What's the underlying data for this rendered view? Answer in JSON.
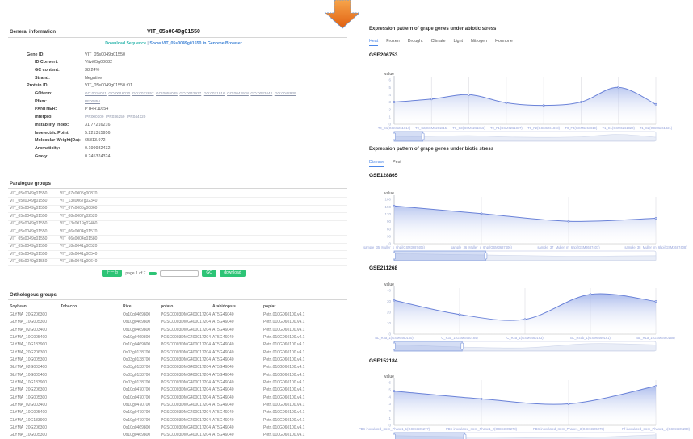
{
  "left": {
    "general": {
      "heading": "General information",
      "title": "VIT_05s0049g01550",
      "download_link": "Download Sequence",
      "separator": "|",
      "browser_link": "Show VIT_05s0049g01550 in Genome Browser",
      "fields": [
        {
          "label": "Gene ID:",
          "value": "VIT_05s0049g01550",
          "indent": 0,
          "kind": "text"
        },
        {
          "label": "ID Convert:",
          "value": "Vitvi05g00082",
          "indent": 1,
          "kind": "text"
        },
        {
          "label": "GC content:",
          "value": "38.24%",
          "indent": 1,
          "kind": "text"
        },
        {
          "label": "Strand:",
          "value": "Negative",
          "indent": 1,
          "kind": "text"
        },
        {
          "label": "Protein ID:",
          "value": "VIT_05s0049g01550.t01",
          "indent": 0,
          "kind": "text"
        },
        {
          "label": "GOterm:",
          "value": [
            "GO:0016021",
            "GO:0016020",
            "GO:0022857",
            "GO:0055085",
            "GO:0042937",
            "GO:0071916",
            "GO:0042938",
            "GO:0033442",
            "GO:0042939"
          ],
          "indent": 1,
          "kind": "links"
        },
        {
          "label": "Pfam:",
          "value": [
            "PF00854"
          ],
          "indent": 1,
          "kind": "links"
        },
        {
          "label": "PANTHER:",
          "value": "PTHR11654",
          "indent": 1,
          "kind": "text"
        },
        {
          "label": "Interpro:",
          "value": [
            "IPR000109",
            "IPR036259",
            "IPR044120"
          ],
          "indent": 1,
          "kind": "links"
        },
        {
          "label": "Instability Index:",
          "value": "31.77216216",
          "indent": 1,
          "kind": "text"
        },
        {
          "label": "Isoelectric Point:",
          "value": "5.221315956",
          "indent": 1,
          "kind": "text"
        },
        {
          "label": "Molecular Weight(Da):",
          "value": "65813.972",
          "indent": 1,
          "kind": "text"
        },
        {
          "label": "Aromaticity:",
          "value": "0.199932432",
          "indent": 1,
          "kind": "text"
        },
        {
          "label": "Gravy:",
          "value": "0.245324324",
          "indent": 1,
          "kind": "text"
        }
      ]
    },
    "paralogue": {
      "heading": "Paralogue groups",
      "rows": [
        [
          "VIT_05s0049g01550",
          "VIT_07s0005g00870"
        ],
        [
          "VIT_05s0049g01550",
          "VIT_13s0067g02340"
        ],
        [
          "VIT_05s0049g01550",
          "VIT_07s0005g00860"
        ],
        [
          "VIT_05s0049g01550",
          "VIT_08s0007g02520"
        ],
        [
          "VIT_05s0049g01550",
          "VIT_13s0019g02460"
        ],
        [
          "VIT_05s0049g01550",
          "VIT_06s0004g01570"
        ],
        [
          "VIT_05s0049g01550",
          "VIT_06s0004g01580"
        ],
        [
          "VIT_05s0049g01550",
          "VIT_18s0041g00520"
        ],
        [
          "VIT_05s0049g01550",
          "VIT_18s0041g00540"
        ],
        [
          "VIT_05s0049g01550",
          "VIT_18s0041g00640"
        ]
      ],
      "pagination": {
        "prev": "上一页",
        "page_label": "page",
        "current": "1",
        "of_label": "of",
        "total": "7",
        "go": "GO",
        "download": "download",
        "input_value": ""
      }
    },
    "orthologous": {
      "heading": "Orthologous groups",
      "headers": [
        "Soybean",
        "Tobacco",
        "Rice",
        "potato",
        "Arabidopsis",
        "poplar"
      ],
      "rows": [
        [
          "GLYMA_20G206300",
          "",
          "Os10g0469800",
          "PGSC0003DMG400017204",
          "AT5G46040",
          "Potri.010G060100.v4.1"
        ],
        [
          "GLYMA_10G005300",
          "",
          "Os10g0469800",
          "PGSC0003DMG400017204",
          "AT5G46040",
          "Potri.010G060100.v4.1"
        ],
        [
          "GLYMA_02G003400",
          "",
          "Os10g0469800",
          "PGSC0003DMG400017204",
          "AT5G46040",
          "Potri.010G060100.v4.1"
        ],
        [
          "GLYMA_10G005400",
          "",
          "Os10g0469800",
          "PGSC0003DMG400017204",
          "AT5G46040",
          "Potri.010G060100.v4.1"
        ],
        [
          "GLYMA_10G183900",
          "",
          "Os10g0469800",
          "PGSC0003DMG400017204",
          "AT5G46040",
          "Potri.010G060100.v4.1"
        ],
        [
          "GLYMA_20G206300",
          "",
          "Os03g0138700",
          "PGSC0003DMG400017204",
          "AT5G46040",
          "Potri.010G060100.v4.1"
        ],
        [
          "GLYMA_10G005300",
          "",
          "Os03g0138700",
          "PGSC0003DMG400017204",
          "AT5G46040",
          "Potri.010G060100.v4.1"
        ],
        [
          "GLYMA_02G003400",
          "",
          "Os03g0138700",
          "PGSC0003DMG400017204",
          "AT5G46040",
          "Potri.010G060100.v4.1"
        ],
        [
          "GLYMA_10G005400",
          "",
          "Os03g0138700",
          "PGSC0003DMG400017204",
          "AT5G46040",
          "Potri.010G060100.v4.1"
        ],
        [
          "GLYMA_10G183900",
          "",
          "Os03g0138700",
          "PGSC0003DMG400017204",
          "AT5G46040",
          "Potri.010G060100.v4.1"
        ],
        [
          "GLYMA_20G206300",
          "",
          "Os10g0470700",
          "PGSC0003DMG400017204",
          "AT5G46040",
          "Potri.010G060100.v4.1"
        ],
        [
          "GLYMA_10G005300",
          "",
          "Os10g0470700",
          "PGSC0003DMG400017204",
          "AT5G46040",
          "Potri.010G060100.v4.1"
        ],
        [
          "GLYMA_02G003400",
          "",
          "Os10g0470700",
          "PGSC0003DMG400017204",
          "AT5G46040",
          "Potri.010G060100.v4.1"
        ],
        [
          "GLYMA_10G005400",
          "",
          "Os10g0470700",
          "PGSC0003DMG400017204",
          "AT5G46040",
          "Potri.010G060100.v4.1"
        ],
        [
          "GLYMA_10G183900",
          "",
          "Os10g0470700",
          "PGSC0003DMG400017204",
          "AT5G46040",
          "Potri.010G060100.v4.1"
        ],
        [
          "GLYMA_20G206300",
          "",
          "Os10g0469800",
          "PGSC0003DMG400017204",
          "AT5G46040",
          "Potri.010G060100.v4.1"
        ],
        [
          "GLYMA_10G005300",
          "",
          "Os10g0469800",
          "PGSC0003DMG400017204",
          "AT5G46040",
          "Potri.010G060100.v4.1"
        ]
      ]
    }
  },
  "right": {
    "abiotic": {
      "heading": "Expression pattern of grape genes under abiotic stress",
      "tabs": [
        "Heat",
        "Frozen",
        "Drought",
        "Climate",
        "Light",
        "Nitrogen",
        "Hormone"
      ],
      "active_tab": "Heat"
    },
    "biotic": {
      "heading": "Expression pattern of grape genes under biotic stress",
      "tabs": [
        "Disease",
        "Pest"
      ],
      "active_tab": "Disease"
    }
  },
  "chart_data": [
    {
      "id": "GSE206753",
      "type": "area",
      "ylabel": "value",
      "ylim": [
        0,
        6
      ],
      "yticks": [
        0,
        1,
        2,
        3,
        4,
        5,
        6
      ],
      "categories": [
        "T0_C1(GSM6261814)",
        "T0_C2(GSM6261815)",
        "T0_C3(GSM6261816)",
        "T0_F1(GSM6261817)",
        "T0_F2(GSM6261818)",
        "T0_F3(GSM6261819)",
        "T1_C1(GSM6261820)",
        "T1_C2(GSM6261821)"
      ],
      "values": [
        3.0,
        3.4,
        4.0,
        2.9,
        2.55,
        3.0,
        5.0,
        2.7
      ],
      "zoom_window": [
        0,
        11
      ]
    },
    {
      "id": "GSE128865",
      "type": "area",
      "ylabel": "value",
      "ylim": [
        0,
        180
      ],
      "yticks": [
        0,
        30,
        60,
        90,
        120,
        150,
        180
      ],
      "categories": [
        "sample_35_Muller_x_6hpi(GSM3687405)",
        "sample_36_Muller_x_6hpi(GSM3687406)",
        "sample_37_Muller_m_6hpi(GSM3687407)",
        "sample_38_Muller_m_6hpi(GSM3687408)"
      ],
      "values": [
        153,
        122,
        91,
        103
      ],
      "zoom_window": [
        0,
        35
      ]
    },
    {
      "id": "GSE211268",
      "type": "area",
      "ylabel": "value",
      "ylim": [
        0,
        40
      ],
      "yticks": [
        0,
        10,
        20,
        30,
        40
      ],
      "categories": [
        "BL_R3a_1(GSM6460160)",
        "C_R3a_1(GSM6460164)",
        "C_R2a_1(GSM6460163)",
        "BL_R4ab_1(GSM6460161)",
        "BL_R1a_1(GSM6460158)"
      ],
      "values": [
        31,
        18,
        13.5,
        36.5,
        30
      ],
      "zoom_window": [
        0,
        26
      ]
    },
    {
      "id": "GSE152184",
      "type": "area",
      "ylabel": "value",
      "ylim": [
        0,
        6
      ],
      "yticks": [
        0,
        1,
        2,
        3,
        4,
        5,
        6
      ],
      "categories": [
        "PBS-inoculated_stem_Phase1_1(GSM4605277)",
        "PBS-inoculated_stem_Phase1_2(GSM4605278)",
        "PBS-inoculated_stem_Phase1_3(GSM4605279)",
        "Rf-inoculated_stem_Phase1_1(GSM4605280)"
      ],
      "values": [
        4.8,
        3.7,
        3.0,
        5.5
      ],
      "zoom_window": [
        0,
        27
      ]
    }
  ],
  "colors": {
    "accent_green": "#2dc476",
    "link_teal": "#2cb5ac",
    "link_blue": "#4285d6",
    "tab_active": "#4a86e8",
    "chart_line": "#6a82d8",
    "chart_fill_top": "#8ea4e6",
    "y_tick_label": "#a2aecf",
    "x_tick_label": "#93a1da",
    "arrow_top": "#f7a54b",
    "arrow_bottom": "#e05f10"
  }
}
